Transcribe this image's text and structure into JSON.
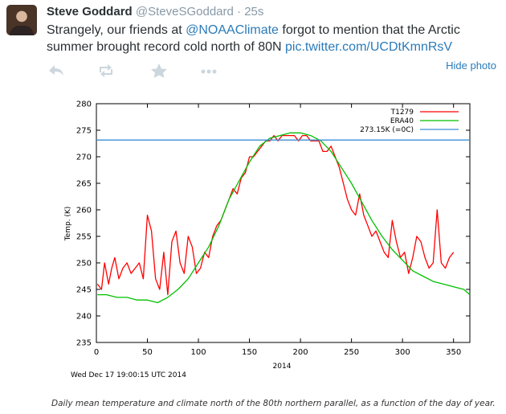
{
  "tweet": {
    "display_name": "Steve Goddard",
    "handle": "@SteveSGoddard",
    "separator": "·",
    "time": "25s",
    "text_before": "Strangely, our friends at ",
    "mention": "@NOAAClimate",
    "text_after": " forgot to mention that the Arctic summer brought record cold north of 80N ",
    "pic_link": "pic.twitter.com/UCDtKmnRsV",
    "hide_photo": "Hide photo"
  },
  "actions": {
    "reply_icon": "reply-icon",
    "retweet_icon": "retweet-icon",
    "favorite_icon": "star-icon",
    "more_icon": "more-icon"
  },
  "chart_data": {
    "type": "line",
    "title": "",
    "xlabel": "2014",
    "ylabel": "Temp. (K)",
    "xlim": [
      0,
      366
    ],
    "ylim": [
      235,
      280
    ],
    "xticks": [
      0,
      50,
      100,
      150,
      200,
      250,
      300,
      350
    ],
    "yticks": [
      235,
      240,
      245,
      250,
      255,
      260,
      265,
      270,
      275,
      280
    ],
    "timestamp": "Wed Dec 17 19:00:15 UTC 2014",
    "caption": "Daily mean temperature and climate north of the 80th northern parallel, as a function of the day of year.",
    "legend_position": "top-right",
    "series": [
      {
        "name": "T1279",
        "color": "#ff0000",
        "x": [
          1,
          5,
          8,
          12,
          15,
          18,
          22,
          26,
          30,
          34,
          38,
          42,
          46,
          50,
          54,
          58,
          62,
          66,
          70,
          74,
          78,
          82,
          86,
          90,
          94,
          98,
          102,
          106,
          110,
          114,
          118,
          122,
          126,
          130,
          134,
          138,
          142,
          146,
          150,
          154,
          158,
          162,
          166,
          170,
          174,
          178,
          182,
          186,
          190,
          194,
          198,
          202,
          206,
          210,
          214,
          218,
          222,
          226,
          230,
          234,
          238,
          242,
          246,
          250,
          254,
          258,
          262,
          266,
          270,
          274,
          278,
          282,
          286,
          290,
          294,
          298,
          302,
          306,
          310,
          314,
          318,
          322,
          326,
          330,
          334,
          338,
          342,
          346,
          350
        ],
        "values": [
          246,
          245,
          250,
          246,
          249,
          251,
          247,
          249,
          250,
          248,
          249,
          250,
          247,
          259,
          256,
          247,
          245,
          252,
          244,
          254,
          256,
          250,
          248,
          255,
          253,
          248,
          249,
          252,
          251,
          255,
          257,
          258,
          260,
          262,
          264,
          263,
          266,
          267,
          270,
          270,
          271,
          272,
          273,
          273,
          274,
          273,
          274,
          274,
          274,
          274,
          273,
          274,
          274,
          273,
          273,
          273,
          271,
          271,
          272,
          270,
          268,
          265,
          262,
          260,
          259,
          263,
          259,
          257,
          255,
          256,
          254,
          252,
          251,
          258,
          254,
          251,
          252,
          248,
          251,
          255,
          254,
          251,
          249,
          250,
          260,
          250,
          249,
          251,
          252
        ]
      },
      {
        "name": "ERA40",
        "color": "#00c000",
        "x": [
          1,
          10,
          20,
          30,
          40,
          50,
          60,
          70,
          80,
          90,
          100,
          110,
          120,
          130,
          140,
          150,
          160,
          170,
          180,
          190,
          200,
          210,
          220,
          230,
          240,
          250,
          260,
          270,
          280,
          290,
          300,
          310,
          320,
          330,
          340,
          350,
          360,
          366
        ],
        "values": [
          244,
          244,
          243.5,
          243.5,
          243,
          243,
          242.5,
          243.5,
          245,
          247,
          250,
          253,
          257,
          262,
          265.5,
          269,
          272,
          273.5,
          274,
          274.5,
          274.5,
          274,
          273,
          271,
          268,
          265,
          261.5,
          258,
          255,
          252.5,
          250.5,
          248.5,
          247.5,
          246.5,
          246,
          245.5,
          245,
          244
        ]
      },
      {
        "name": "273.15K (=0C)",
        "color": "#3b8fd6",
        "x": [
          0,
          366
        ],
        "values": [
          273.15,
          273.15
        ]
      }
    ]
  }
}
